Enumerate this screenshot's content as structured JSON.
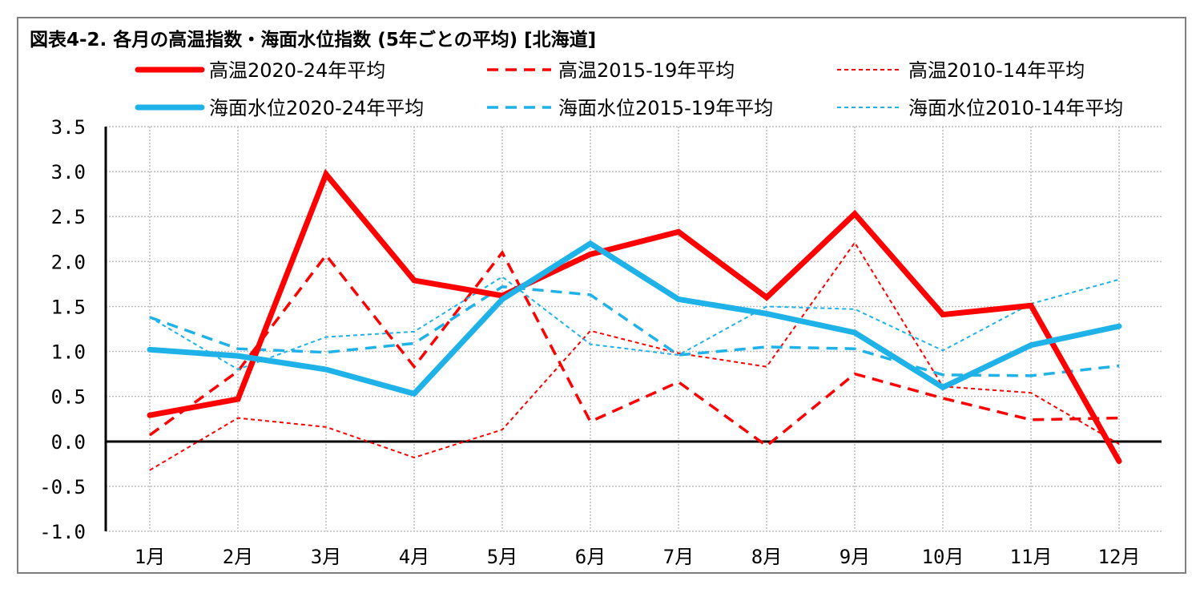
{
  "title": "図表4-2. 各月の高温指数・海面水位指数 (5年ごとの平均) [北海道]",
  "colors": {
    "heat": "#ff0000",
    "sea": "#1fb2e8",
    "grid": "#bdbdbd",
    "axis": "#000000",
    "frame": "#7f7f7f"
  },
  "chart_data": {
    "type": "line",
    "title": "図表4-2. 各月の高温指数・海面水位指数 (5年ごとの平均) [北海道]",
    "categories": [
      "1月",
      "2月",
      "3月",
      "4月",
      "5月",
      "6月",
      "7月",
      "8月",
      "9月",
      "10月",
      "11月",
      "12月"
    ],
    "ylim": [
      -1.0,
      3.5
    ],
    "yticks": [
      "3.5",
      "3.0",
      "2.5",
      "2.0",
      "1.5",
      "1.0",
      "0.5",
      "0.0",
      "-0.5",
      "-1.0"
    ],
    "grid": true,
    "legend_position": "top",
    "series": [
      {
        "name": "高温2020-24年平均",
        "group": "heat",
        "style": "thick-solid",
        "values": [
          0.29,
          0.47,
          2.97,
          1.79,
          1.62,
          2.08,
          2.33,
          1.6,
          2.53,
          1.41,
          1.51,
          -0.22
        ]
      },
      {
        "name": "高温2015-19年平均",
        "group": "heat",
        "style": "dashed",
        "values": [
          0.07,
          0.78,
          2.07,
          0.83,
          2.1,
          0.22,
          0.66,
          -0.05,
          0.75,
          0.48,
          0.24,
          0.26
        ]
      },
      {
        "name": "高温2010-14年平均",
        "group": "heat",
        "style": "dotted",
        "values": [
          -0.32,
          0.26,
          0.16,
          -0.18,
          0.13,
          1.23,
          0.98,
          0.83,
          2.21,
          0.61,
          0.54,
          -0.03
        ]
      },
      {
        "name": "海面水位2020-24年平均",
        "group": "sea",
        "style": "thick-solid",
        "values": [
          1.02,
          0.95,
          0.8,
          0.53,
          1.58,
          2.2,
          1.58,
          1.42,
          1.21,
          0.6,
          1.07,
          1.28
        ]
      },
      {
        "name": "海面水位2015-19年平均",
        "group": "sea",
        "style": "dashed",
        "values": [
          1.38,
          1.03,
          0.99,
          1.09,
          1.72,
          1.63,
          0.96,
          1.05,
          1.03,
          0.74,
          0.73,
          0.84
        ]
      },
      {
        "name": "海面水位2010-14年平均",
        "group": "sea",
        "style": "dotted",
        "values": [
          1.38,
          0.8,
          1.16,
          1.22,
          1.83,
          1.08,
          0.96,
          1.5,
          1.47,
          1.01,
          1.53,
          1.8
        ]
      }
    ]
  }
}
